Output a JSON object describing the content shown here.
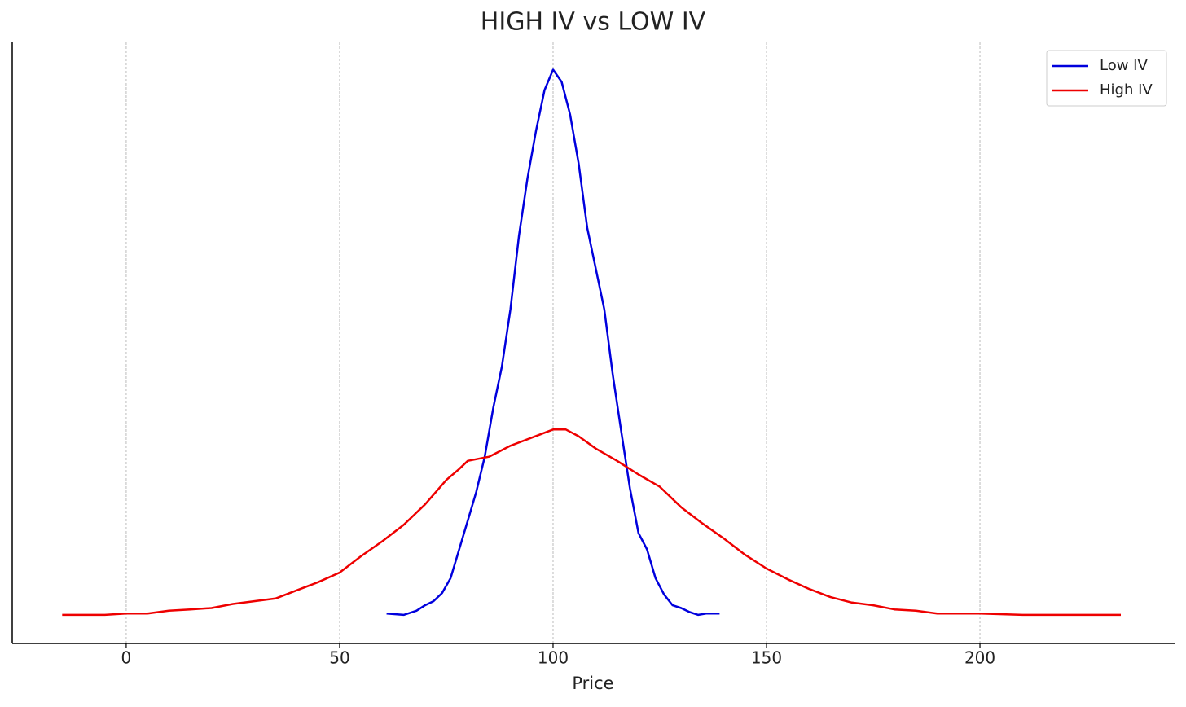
{
  "chart_data": {
    "type": "line",
    "title": "HIGH IV vs LOW IV",
    "xlabel": "Price",
    "xlim": [
      -26.7,
      245.6
    ],
    "xticks": [
      0,
      50,
      100,
      150,
      200
    ],
    "ylim": [
      -0.0021,
      0.042
    ],
    "grid": "x",
    "legend": "upper right",
    "series": [
      {
        "name": "Low IV",
        "color": "#0000dd",
        "x": [
          61,
          65,
          68,
          70,
          72,
          74,
          76,
          78,
          80,
          82,
          84,
          86,
          88,
          90,
          92,
          94,
          96,
          98,
          100,
          102,
          104,
          106,
          108,
          110,
          112,
          114,
          116,
          118,
          120,
          122,
          124,
          126,
          128,
          130,
          132,
          134,
          136,
          139
        ],
        "values": [
          0.0001,
          0,
          0.0003,
          0.0007,
          0.001,
          0.0016,
          0.0027,
          0.0048,
          0.0069,
          0.009,
          0.0116,
          0.0152,
          0.0182,
          0.0224,
          0.0278,
          0.032,
          0.0355,
          0.0385,
          0.04,
          0.0391,
          0.0367,
          0.0331,
          0.0284,
          0.0254,
          0.0224,
          0.0176,
          0.0134,
          0.0093,
          0.006,
          0.0048,
          0.0027,
          0.0015,
          0.0007,
          0.0005,
          0.0002,
          0,
          0.0001,
          0.0001
        ]
      },
      {
        "name": "High IV",
        "color": "#ee0000",
        "x": [
          -15,
          -5,
          0,
          5,
          10,
          15,
          20,
          25,
          30,
          35,
          40,
          45,
          50,
          55,
          60,
          65,
          70,
          75,
          78,
          80,
          85,
          90,
          95,
          100,
          103,
          106,
          110,
          115,
          120,
          125,
          130,
          135,
          140,
          145,
          150,
          155,
          160,
          165,
          170,
          175,
          180,
          185,
          190,
          200,
          210,
          220,
          233
        ],
        "values": [
          0,
          0,
          0.0001,
          0.0001,
          0.0003,
          0.0004,
          0.0005,
          0.0008,
          0.001,
          0.0012,
          0.0018,
          0.0024,
          0.0031,
          0.0043,
          0.0054,
          0.0066,
          0.0081,
          0.0099,
          0.0107,
          0.0113,
          0.0116,
          0.0124,
          0.013,
          0.0136,
          0.0136,
          0.0131,
          0.0122,
          0.0113,
          0.0103,
          0.0094,
          0.0079,
          0.0067,
          0.0056,
          0.0044,
          0.0034,
          0.0026,
          0.0019,
          0.0013,
          0.0009,
          0.0007,
          0.0004,
          0.0003,
          0.0001,
          0.0001,
          0,
          0,
          0
        ]
      }
    ]
  }
}
